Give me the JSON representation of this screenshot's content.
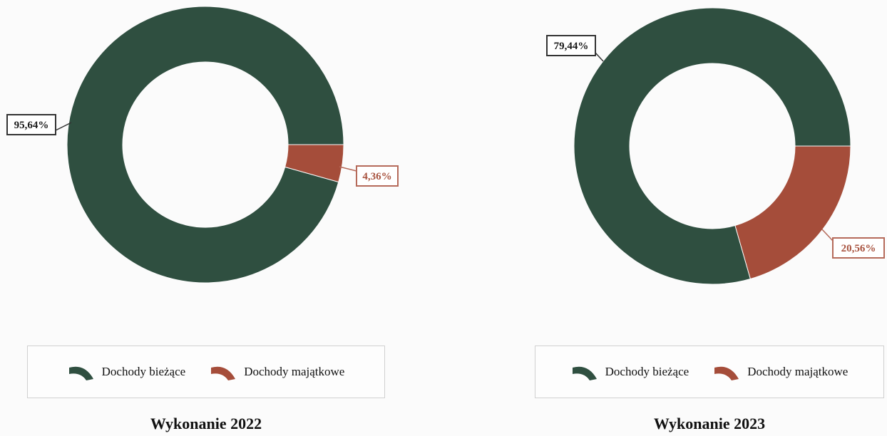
{
  "chart_data": [
    {
      "type": "pie",
      "title": "Wykonanie 2022",
      "categories": [
        "Dochody bieżące",
        "Dochody majątkowe"
      ],
      "values": [
        95.64,
        4.36
      ],
      "data_labels": [
        "95,64%",
        "4,36%"
      ],
      "colors": [
        "#2f4f40",
        "#a54d3a"
      ],
      "donut": true,
      "legend_position": "bottom"
    },
    {
      "type": "pie",
      "title": "Wykonanie 2023",
      "categories": [
        "Dochody bieżące",
        "Dochody majątkowe"
      ],
      "values": [
        79.44,
        20.56
      ],
      "data_labels": [
        "79,44%",
        "20,56%"
      ],
      "colors": [
        "#2f4f40",
        "#a54d3a"
      ],
      "donut": true,
      "legend_position": "bottom"
    }
  ],
  "label_border_colors": [
    "#333333",
    "#b56a5a"
  ],
  "label_text_colors": [
    "#1a1a1a",
    "#a8533f"
  ]
}
